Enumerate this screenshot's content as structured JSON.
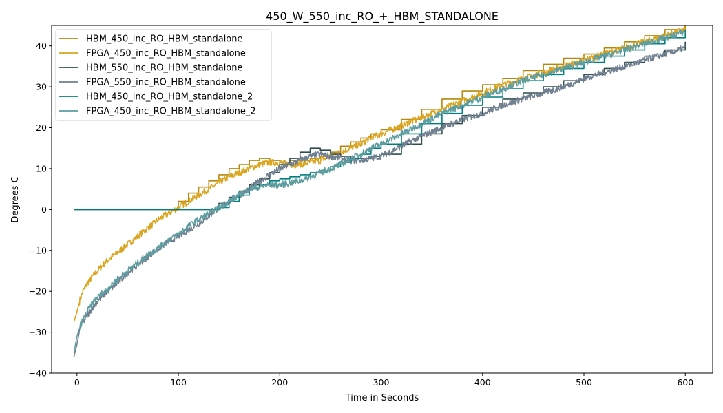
{
  "chart_data": {
    "type": "line",
    "title": "450_W_550_inc_RO_+_HBM_STANDALONE",
    "xlabel": "Time in Seconds",
    "ylabel": "Degrees C",
    "xlim": [
      -25,
      627
    ],
    "ylim": [
      -40,
      45
    ],
    "xticks": [
      0,
      100,
      200,
      300,
      400,
      500,
      600
    ],
    "yticks": [
      -40,
      -30,
      -20,
      -10,
      0,
      10,
      20,
      30,
      40
    ],
    "xtick_labels": [
      "0",
      "100",
      "200",
      "300",
      "400",
      "500",
      "600"
    ],
    "ytick_labels": [
      "−40",
      "−30",
      "−20",
      "−10",
      "0",
      "10",
      "20",
      "30",
      "40"
    ],
    "grid": false,
    "legend": "top-left",
    "series": [
      {
        "name": "HBM_450_inc_RO_HBM_standalone",
        "color": "#b8860b",
        "style": "step",
        "x": [
          -3,
          90,
          100,
          110,
          120,
          130,
          140,
          150,
          160,
          170,
          180,
          190,
          200,
          210,
          220,
          230,
          240,
          250,
          260,
          270,
          280,
          290,
          300,
          320,
          340,
          360,
          380,
          400,
          420,
          440,
          460,
          480,
          500,
          520,
          540,
          560,
          580,
          600
        ],
        "y": [
          0,
          0,
          2,
          4,
          5.5,
          7,
          8.5,
          10,
          11,
          12,
          12.5,
          12,
          11.5,
          12,
          12,
          12.5,
          13,
          14,
          15.5,
          16.5,
          17.5,
          18.5,
          19.5,
          22,
          24.5,
          27,
          29,
          30.5,
          32,
          34,
          35.5,
          37,
          38,
          39.5,
          41,
          42.5,
          44,
          45
        ]
      },
      {
        "name": "FPGA_450_inc_RO_HBM_standalone",
        "color": "#daa520",
        "style": "noisy",
        "x": [
          -3,
          0,
          3,
          6,
          10,
          15,
          20,
          30,
          40,
          50,
          60,
          70,
          80,
          90,
          100,
          110,
          120,
          130,
          140,
          150,
          160,
          170,
          180,
          190,
          200,
          210,
          220,
          230,
          240,
          250,
          260,
          270,
          280,
          290,
          300,
          320,
          340,
          360,
          380,
          400,
          420,
          440,
          460,
          480,
          500,
          520,
          540,
          560,
          580,
          600
        ],
        "y": [
          -27.5,
          -25,
          -22,
          -20,
          -18,
          -16.5,
          -15,
          -12.5,
          -10.5,
          -8.5,
          -6.5,
          -4.5,
          -2.5,
          -1,
          0.5,
          2,
          3.5,
          5,
          6.5,
          8,
          9,
          10,
          11,
          11.5,
          11.5,
          11,
          11,
          11.5,
          12,
          13,
          14,
          15,
          16,
          17.5,
          18.5,
          20.5,
          22.5,
          24.5,
          26.5,
          28.5,
          30.5,
          32,
          33.5,
          35,
          36.5,
          38,
          39.5,
          41,
          42.5,
          44
        ]
      },
      {
        "name": "HBM_550_inc_RO_HBM_standalone",
        "color": "#2f4f4f",
        "style": "step",
        "x": [
          -3,
          130,
          140,
          150,
          160,
          170,
          180,
          190,
          200,
          210,
          220,
          230,
          240,
          250,
          260,
          270,
          280,
          290,
          300,
          320,
          340,
          360,
          380,
          400,
          420,
          440,
          460,
          480,
          500,
          520,
          540,
          560,
          580,
          600
        ],
        "y": [
          0,
          0,
          1.5,
          3,
          4.5,
          6,
          7.5,
          9,
          11,
          12.5,
          14,
          15,
          14.5,
          13.5,
          13,
          12.5,
          12.5,
          13,
          13.5,
          16,
          18.5,
          21,
          23,
          25,
          27,
          28.5,
          30,
          31.5,
          33,
          34.5,
          36,
          37.5,
          39,
          41
        ]
      },
      {
        "name": "FPGA_550_inc_RO_HBM_standalone",
        "color": "#708090",
        "style": "noisy",
        "x": [
          -3,
          0,
          3,
          6,
          10,
          15,
          20,
          30,
          40,
          50,
          60,
          70,
          80,
          90,
          100,
          110,
          120,
          130,
          140,
          150,
          160,
          170,
          180,
          190,
          200,
          210,
          220,
          230,
          240,
          250,
          260,
          270,
          280,
          290,
          300,
          320,
          340,
          360,
          380,
          400,
          420,
          440,
          460,
          480,
          500,
          520,
          540,
          560,
          580,
          600
        ],
        "y": [
          -36,
          -33,
          -29,
          -27.5,
          -26,
          -24,
          -22.5,
          -20,
          -18,
          -15.5,
          -13.5,
          -11.5,
          -9.5,
          -8,
          -6.5,
          -5,
          -3.5,
          -1.5,
          0.5,
          2,
          3.5,
          5,
          7,
          8.5,
          10,
          11,
          12,
          13,
          13.5,
          13,
          12.5,
          12,
          12,
          12.5,
          13,
          15.5,
          18,
          20,
          22,
          23.5,
          25.5,
          27,
          28.5,
          30,
          32,
          33.5,
          35,
          36.5,
          38,
          39.5
        ]
      },
      {
        "name": "HBM_450_inc_RO_HBM_standalone_2",
        "color": "#008080",
        "style": "step",
        "x": [
          -3,
          130,
          140,
          150,
          160,
          170,
          180,
          190,
          200,
          210,
          220,
          230,
          240,
          250,
          260,
          270,
          280,
          290,
          300,
          320,
          340,
          360,
          380,
          400,
          420,
          440,
          460,
          480,
          500,
          520,
          540,
          560,
          580,
          600
        ],
        "y": [
          0,
          0,
          0.5,
          2,
          3.5,
          5,
          6,
          7,
          7.5,
          8,
          8.5,
          9,
          9.5,
          10.5,
          11.5,
          12.5,
          13.5,
          15,
          16,
          18.5,
          21,
          23.5,
          25.5,
          27.5,
          29.5,
          31.5,
          33,
          34.5,
          36,
          37.5,
          39,
          40.5,
          42,
          44
        ]
      },
      {
        "name": "FPGA_450_inc_RO_HBM_standalone_2",
        "color": "#5f9ea0",
        "style": "noisy",
        "x": [
          -3,
          0,
          3,
          6,
          10,
          15,
          20,
          30,
          40,
          50,
          60,
          70,
          80,
          90,
          100,
          110,
          120,
          130,
          140,
          150,
          160,
          170,
          180,
          190,
          200,
          210,
          220,
          230,
          240,
          250,
          260,
          270,
          280,
          290,
          300,
          320,
          340,
          360,
          380,
          400,
          420,
          440,
          460,
          480,
          500,
          520,
          540,
          560,
          580,
          600
        ],
        "y": [
          -35,
          -31,
          -28.5,
          -27,
          -25,
          -23,
          -21.5,
          -19.5,
          -17,
          -15,
          -13,
          -11,
          -9.5,
          -7.5,
          -6,
          -4,
          -2.5,
          -1,
          0.5,
          2,
          3.5,
          5,
          5.5,
          6,
          6,
          6.5,
          7,
          8,
          9,
          10,
          11,
          12.5,
          13.5,
          15,
          16,
          18.5,
          21,
          23.5,
          25.5,
          27.5,
          29.5,
          31.5,
          33,
          34.5,
          36,
          37.5,
          39,
          40.5,
          42,
          43.5
        ]
      }
    ]
  }
}
